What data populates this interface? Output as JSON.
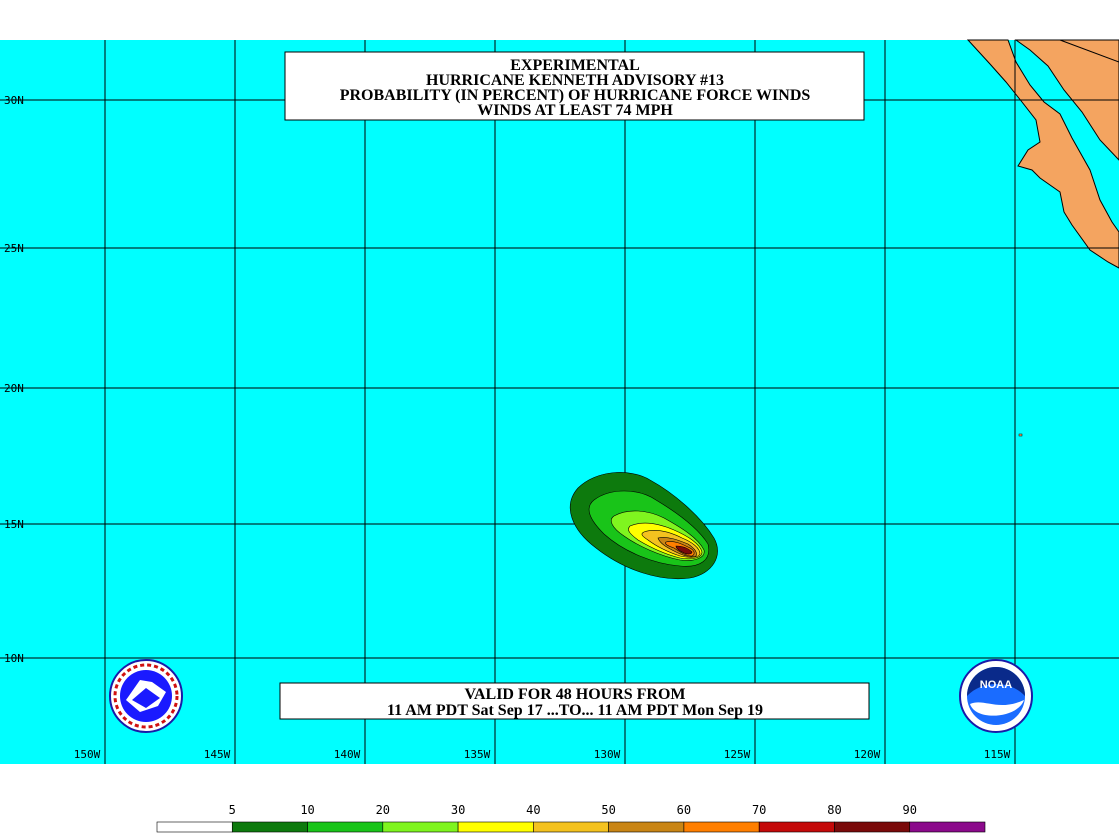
{
  "title_box": {
    "line1": "EXPERIMENTAL",
    "line2": "HURRICANE KENNETH ADVISORY #13",
    "line3": "PROBABILITY (IN PERCENT) OF HURRICANE FORCE WINDS",
    "line4": "WINDS AT LEAST 74 MPH"
  },
  "valid_box": {
    "line1": "VALID FOR 48 HOURS FROM",
    "line2": "11 AM PDT Sat Sep 17 ...TO... 11 AM PDT Mon Sep 19"
  },
  "lat_labels": [
    "30N",
    "25N",
    "20N",
    "15N",
    "10N"
  ],
  "lon_labels": [
    "150W",
    "145W",
    "140W",
    "135W",
    "130W",
    "125W",
    "120W",
    "115W"
  ],
  "legend": {
    "ticks": [
      "5",
      "10",
      "20",
      "30",
      "40",
      "50",
      "60",
      "70",
      "80",
      "90"
    ],
    "colors": [
      "#ffffff",
      "#0d7a0d",
      "#19c419",
      "#7ff51f",
      "#ffff00",
      "#f4c21f",
      "#c98515",
      "#ff7f00",
      "#c40a0a",
      "#7a0a0a",
      "#8b0a8b"
    ]
  },
  "colors": {
    "ocean": "#00ffff",
    "land": "#f4a460",
    "grid": "#000000"
  },
  "logos": {
    "left": "nws-logo-icon",
    "right": "noaa-logo-icon"
  }
}
